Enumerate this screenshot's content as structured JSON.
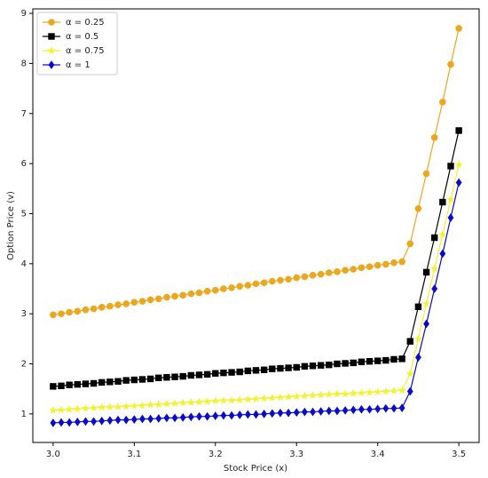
{
  "chart_data": {
    "type": "line",
    "xlabel": "Stock Price (x)",
    "ylabel": "Option Price (v)",
    "x": [
      3.0,
      3.01,
      3.02,
      3.03,
      3.04,
      3.05,
      3.06,
      3.07,
      3.08,
      3.09,
      3.1,
      3.11,
      3.12,
      3.13,
      3.14,
      3.15,
      3.16,
      3.17,
      3.18,
      3.19,
      3.2,
      3.21,
      3.22,
      3.23,
      3.24,
      3.25,
      3.26,
      3.27,
      3.28,
      3.29,
      3.3,
      3.31,
      3.32,
      3.33,
      3.34,
      3.35,
      3.36,
      3.37,
      3.38,
      3.39,
      3.4,
      3.41,
      3.42,
      3.43,
      3.44,
      3.45,
      3.46,
      3.47,
      3.48,
      3.49,
      3.5
    ],
    "series": [
      {
        "name": "α = 0.25",
        "color": "#eba71e",
        "marker": "circle",
        "values": [
          2.98,
          3.0,
          3.03,
          3.05,
          3.08,
          3.1,
          3.13,
          3.15,
          3.18,
          3.2,
          3.23,
          3.25,
          3.28,
          3.3,
          3.33,
          3.35,
          3.37,
          3.4,
          3.42,
          3.45,
          3.47,
          3.5,
          3.52,
          3.55,
          3.57,
          3.6,
          3.62,
          3.65,
          3.67,
          3.69,
          3.72,
          3.74,
          3.77,
          3.79,
          3.82,
          3.84,
          3.87,
          3.89,
          3.92,
          3.94,
          3.97,
          3.99,
          4.02,
          4.04,
          4.4,
          5.1,
          5.8,
          6.52,
          7.23,
          7.98,
          8.7
        ]
      },
      {
        "name": "α = 0.5",
        "color": "#000000",
        "marker": "square",
        "values": [
          1.55,
          1.56,
          1.58,
          1.59,
          1.6,
          1.61,
          1.63,
          1.64,
          1.65,
          1.67,
          1.68,
          1.69,
          1.7,
          1.72,
          1.73,
          1.74,
          1.75,
          1.77,
          1.78,
          1.79,
          1.81,
          1.82,
          1.83,
          1.84,
          1.86,
          1.87,
          1.88,
          1.9,
          1.91,
          1.92,
          1.93,
          1.95,
          1.96,
          1.97,
          1.98,
          2.0,
          2.01,
          2.02,
          2.04,
          2.05,
          2.06,
          2.07,
          2.09,
          2.1,
          2.45,
          3.14,
          3.83,
          4.52,
          5.23,
          5.95,
          6.66
        ]
      },
      {
        "name": "α = 0.75",
        "color": "#f2f230",
        "marker": "star",
        "values": [
          1.07,
          1.08,
          1.09,
          1.1,
          1.11,
          1.12,
          1.13,
          1.14,
          1.14,
          1.15,
          1.16,
          1.17,
          1.18,
          1.19,
          1.2,
          1.21,
          1.22,
          1.23,
          1.24,
          1.25,
          1.26,
          1.27,
          1.27,
          1.28,
          1.29,
          1.3,
          1.31,
          1.32,
          1.33,
          1.34,
          1.35,
          1.36,
          1.37,
          1.38,
          1.39,
          1.4,
          1.4,
          1.41,
          1.42,
          1.43,
          1.44,
          1.45,
          1.46,
          1.47,
          1.8,
          2.5,
          3.2,
          3.9,
          4.58,
          5.28,
          5.98
        ]
      },
      {
        "name": "α = 1",
        "color": "#0a0acc",
        "marker": "diamond",
        "values": [
          0.82,
          0.83,
          0.83,
          0.84,
          0.85,
          0.85,
          0.86,
          0.87,
          0.88,
          0.88,
          0.89,
          0.9,
          0.9,
          0.91,
          0.92,
          0.92,
          0.93,
          0.94,
          0.95,
          0.95,
          0.96,
          0.97,
          0.97,
          0.98,
          0.99,
          0.99,
          1.0,
          1.01,
          1.02,
          1.02,
          1.03,
          1.04,
          1.04,
          1.05,
          1.06,
          1.06,
          1.07,
          1.08,
          1.09,
          1.09,
          1.1,
          1.11,
          1.11,
          1.12,
          1.45,
          2.13,
          2.8,
          3.5,
          4.2,
          4.92,
          5.62
        ]
      }
    ],
    "xlim": [
      2.975,
      3.525
    ],
    "ylim": [
      0.43,
      9.09
    ],
    "xticks": [
      {
        "value": 3,
        "label": "3.0"
      },
      3.1,
      3.2,
      3.3,
      3.4,
      3.5
    ],
    "yticks": [
      1,
      2,
      3,
      4,
      5,
      6,
      7,
      8,
      9
    ],
    "grid": false,
    "legend": "upper left"
  }
}
